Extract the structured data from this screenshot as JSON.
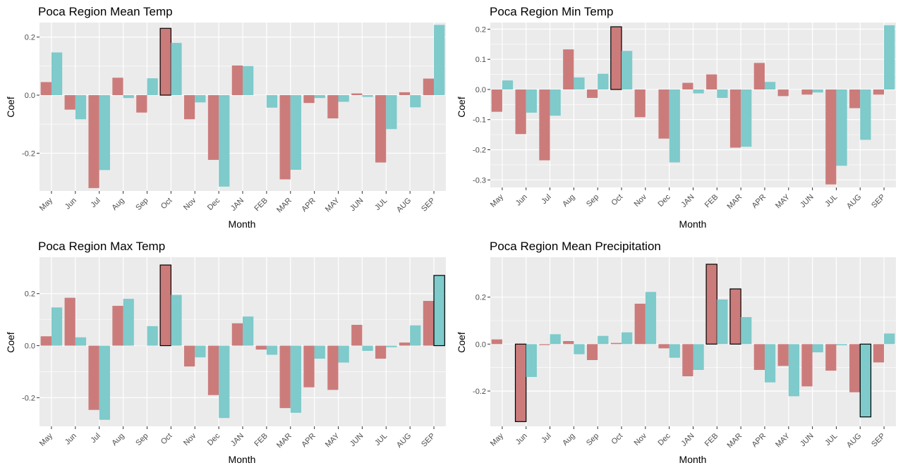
{
  "colors": {
    "series1": "#cc7b7b",
    "series2": "#7fcacb",
    "panel_bg": "#ebebeb",
    "grid": "#ffffff",
    "highlight_stroke": "#000000"
  },
  "chart_data": [
    {
      "type": "bar",
      "title": "Poca Region Mean Temp",
      "xlabel": "Month",
      "ylabel": "Coef",
      "categories": [
        "May",
        "Jun",
        "Jul",
        "Aug",
        "Sep",
        "Oct",
        "Nov",
        "Dec",
        "JAN",
        "FEB",
        "MAR",
        "APR",
        "MAY",
        "JUN",
        "JUL",
        "AUG",
        "SEP"
      ],
      "ylim": [
        -0.33,
        0.25
      ],
      "yticks": [
        -0.2,
        0.0,
        0.2
      ],
      "ytick_labels": [
        "-0.2",
        "0.0",
        "0.2"
      ],
      "grid": true,
      "legend": "none",
      "series": [
        {
          "values": [
            0.045,
            -0.05,
            -0.32,
            0.06,
            -0.06,
            0.23,
            -0.083,
            -0.223,
            0.102,
            0.0,
            -0.29,
            -0.027,
            -0.08,
            0.006,
            -0.232,
            0.01,
            0.057
          ]
        },
        {
          "values": [
            0.147,
            -0.083,
            -0.258,
            -0.01,
            0.058,
            0.18,
            -0.025,
            -0.315,
            0.1,
            -0.043,
            -0.257,
            -0.01,
            -0.023,
            -0.006,
            -0.117,
            -0.042,
            0.242
          ]
        }
      ],
      "highlighted": [
        {
          "series": 0,
          "category": "Oct"
        }
      ]
    },
    {
      "type": "bar",
      "title": "Poca Region Min Temp",
      "xlabel": "Month",
      "ylabel": "Coef",
      "categories": [
        "May",
        "Jun",
        "Jul",
        "Aug",
        "Sep",
        "Oct",
        "Nov",
        "Dec",
        "JAN",
        "FEB",
        "MAR",
        "APR",
        "MAY",
        "JUN",
        "JUL",
        "AUG",
        "SEP"
      ],
      "ylim": [
        -0.325,
        0.222
      ],
      "yticks": [
        -0.3,
        -0.2,
        -0.1,
        0.0,
        0.1,
        0.2
      ],
      "ytick_labels": [
        "-0.3",
        "-0.2",
        "-0.1",
        "0.0",
        "0.1",
        "0.2"
      ],
      "grid": true,
      "legend": "none",
      "series": [
        {
          "values": [
            -0.074,
            -0.148,
            -0.235,
            0.133,
            -0.028,
            0.208,
            -0.092,
            -0.163,
            0.022,
            0.05,
            -0.193,
            0.088,
            -0.022,
            -0.017,
            -0.315,
            -0.062,
            -0.017
          ]
        },
        {
          "values": [
            0.03,
            -0.077,
            -0.087,
            0.04,
            0.052,
            0.128,
            0.0,
            -0.242,
            -0.013,
            -0.028,
            -0.19,
            0.025,
            0.0,
            -0.01,
            -0.253,
            -0.167,
            0.213
          ]
        }
      ],
      "highlighted": [
        {
          "series": 0,
          "category": "Oct"
        }
      ]
    },
    {
      "type": "bar",
      "title": "Poca Region Max Temp",
      "xlabel": "Month",
      "ylabel": "Coef",
      "categories": [
        "May",
        "Jun",
        "Jul",
        "Aug",
        "Sep",
        "Oct",
        "Nov",
        "Dec",
        "JAN",
        "FEB",
        "MAR",
        "APR",
        "MAY",
        "JUN",
        "JUL",
        "AUG",
        "SEP"
      ],
      "ylim": [
        -0.31,
        0.34
      ],
      "yticks": [
        -0.2,
        0.0,
        0.2
      ],
      "ytick_labels": [
        "-0.2",
        "0.0",
        "0.2"
      ],
      "grid": true,
      "legend": "none",
      "series": [
        {
          "values": [
            0.036,
            0.184,
            -0.247,
            0.153,
            0.0,
            0.31,
            -0.08,
            -0.19,
            0.086,
            -0.015,
            -0.24,
            -0.16,
            -0.17,
            0.08,
            -0.05,
            0.012,
            0.172
          ]
        },
        {
          "values": [
            0.147,
            0.032,
            -0.285,
            0.18,
            0.075,
            0.195,
            -0.045,
            -0.278,
            0.112,
            -0.035,
            -0.258,
            -0.05,
            -0.065,
            -0.02,
            -0.006,
            0.078,
            0.27
          ]
        }
      ],
      "highlighted": [
        {
          "series": 0,
          "category": "Oct"
        },
        {
          "series": 1,
          "category": "SEP"
        }
      ]
    },
    {
      "type": "bar",
      "title": "Poca Region Mean Precipitation",
      "xlabel": "Month",
      "ylabel": "Coef",
      "categories": [
        "May",
        "Jun",
        "Jul",
        "Aug",
        "Sep",
        "Oct",
        "Nov",
        "Dec",
        "JAN",
        "FEB",
        "MAR",
        "APR",
        "MAY",
        "JUN",
        "JUL",
        "AUG",
        "SEP"
      ],
      "ylim": [
        -0.35,
        0.37
      ],
      "yticks": [
        -0.2,
        0.0,
        0.2
      ],
      "ytick_labels": [
        "-0.2",
        "0.0",
        "0.2"
      ],
      "grid": true,
      "legend": "none",
      "series": [
        {
          "values": [
            0.02,
            -0.33,
            -0.004,
            0.013,
            -0.068,
            0.005,
            0.172,
            -0.018,
            -0.137,
            0.34,
            0.235,
            -0.11,
            -0.093,
            -0.18,
            -0.113,
            -0.205,
            -0.078
          ]
        },
        {
          "values": [
            0.0,
            -0.14,
            0.042,
            -0.043,
            0.035,
            0.05,
            0.222,
            -0.058,
            -0.11,
            0.19,
            0.115,
            -0.163,
            -0.222,
            -0.035,
            -0.005,
            -0.31,
            0.045
          ]
        }
      ],
      "highlighted": [
        {
          "series": 0,
          "category": "Jun"
        },
        {
          "series": 0,
          "category": "FEB"
        },
        {
          "series": 0,
          "category": "MAR"
        },
        {
          "series": 1,
          "category": "AUG"
        }
      ]
    }
  ]
}
